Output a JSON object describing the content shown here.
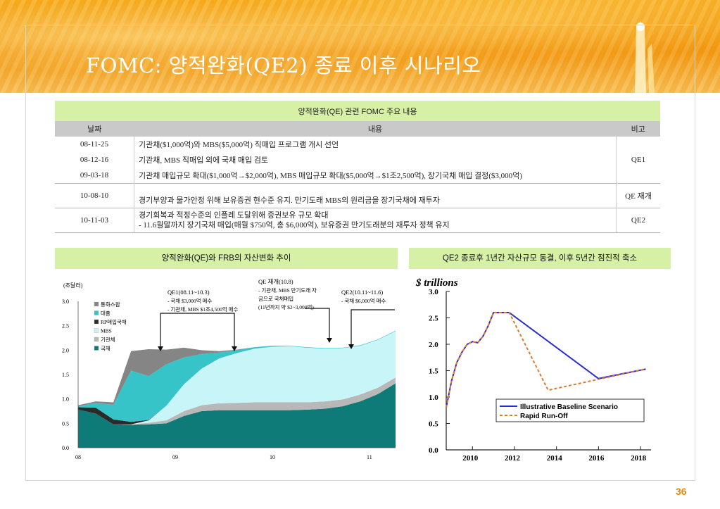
{
  "title": "FOMC: 양적완화(QE2) 종료 이후 시나리오",
  "table": {
    "caption": "양적완화(QE) 관련 FOMC 주요 내용",
    "headers": [
      "날짜",
      "내용",
      "비고"
    ],
    "rows": [
      {
        "date": "08-11-25",
        "content": "기관채($1,000억)와 MBS($5,000억) 직매입 프로그램 개시 선언"
      },
      {
        "date": "08-12-16",
        "content": "기관채, MBS 직매입 외에 국채 매입 검토"
      },
      {
        "date": "09-03-18",
        "content": "기관채 매입규모 확대($1,000억→$2,000억), MBS 매입규모 확대($5,000억→$1조2,500억), 장기국채 매입 결정($3,000억)"
      },
      {
        "date": "10-08-10",
        "content": "경기부양과 물가안정 위해 보유증권 현수준 유지.  만기도래 MBS의 원리금을 장기국채에 재투자",
        "note": "QE 재개"
      },
      {
        "date": "10-11-03",
        "content_1": "경기회복과 적정수준의 인플레 도달위해 증권보유 규모 확대",
        "content_2": "- 11.6월말까지 장기국채 매입(매월 $750억, 총 $6,000억),  보유증권 만기도래분의 재투자 정책 유지",
        "note": "QE2"
      }
    ],
    "group_note": "QE1"
  },
  "left_chart": {
    "caption": "양적완화(QE)와 FRB의 자산변화 추이",
    "unit": "(조달러)",
    "y_ticks": [
      "3.0",
      "2.5",
      "2.0",
      "1.5",
      "1.0",
      "0.5",
      "0.0"
    ],
    "x_ticks": [
      "08",
      "09",
      "10",
      "11"
    ],
    "legend": [
      "통화스왑",
      "대출",
      "RP매입국채",
      "MBS",
      "기관채",
      "국채"
    ],
    "ann_qe1_title": "QE1(08.11~10.3)",
    "ann_qe1_l1": "- 국채 $3,000억 매수",
    "ann_qe1_l2": "- 기관채, MBS $1조4,500억 매수",
    "ann_qe_title": "QE 재개(10.8)",
    "ann_qe_l1": "- 기관채, MBS 만기도래 자",
    "ann_qe_l2": "금으로 국채매입",
    "ann_qe_l3": "(11년까지 약 $2~3,000억)",
    "ann_qe2_title": "QE2(10.11~11.6)",
    "ann_qe2_l1": "- 국채 $6,000억 매수"
  },
  "right_chart": {
    "caption": "QE2 종료후 1년간 자산규모 동결, 이후 5년간 점진적 축소",
    "unit_label": "$ trillions",
    "y_ticks": [
      "3.0",
      "2.5",
      "2.0",
      "1.5",
      "1.0",
      "0.5",
      "0.0"
    ],
    "x_ticks": [
      "2010",
      "2012",
      "2014",
      "2016",
      "2018"
    ],
    "legend": [
      "Illustrative Baseline Scenario",
      "Rapid Run-Off"
    ],
    "colors": {
      "baseline": "#2b2bd6",
      "runoff": "#e07a2a"
    }
  },
  "chart_data": [
    {
      "type": "area",
      "title": "양적완화(QE)와 FRB의 자산변화 추이",
      "ylabel": "(조달러)",
      "ylim": [
        0,
        3.0
      ],
      "x": [
        "08.01",
        "08.05",
        "08.09",
        "08.11",
        "09.01",
        "09.03",
        "09.05",
        "09.07",
        "09.09",
        "09.11",
        "10.01",
        "10.03",
        "10.05",
        "10.07",
        "10.09",
        "10.11",
        "11.01",
        "11.03",
        "11.05"
      ],
      "series": [
        {
          "name": "국채",
          "values": [
            0.78,
            0.7,
            0.48,
            0.47,
            0.48,
            0.5,
            0.65,
            0.75,
            0.77,
            0.77,
            0.77,
            0.77,
            0.77,
            0.78,
            0.8,
            0.85,
            0.95,
            1.1,
            1.32
          ]
        },
        {
          "name": "기관채",
          "values": [
            0,
            0,
            0,
            0.01,
            0.03,
            0.06,
            0.1,
            0.12,
            0.14,
            0.15,
            0.16,
            0.16,
            0.16,
            0.15,
            0.15,
            0.14,
            0.14,
            0.13,
            0.12
          ]
        },
        {
          "name": "MBS",
          "values": [
            0,
            0,
            0,
            0,
            0.05,
            0.3,
            0.55,
            0.75,
            0.92,
            1.02,
            1.1,
            1.14,
            1.15,
            1.12,
            1.08,
            1.05,
            1.0,
            0.98,
            0.95
          ]
        },
        {
          "name": "RP매입국채",
          "values": [
            0.05,
            0.12,
            0.1,
            0.05,
            0.01,
            0,
            0,
            0,
            0,
            0,
            0,
            0,
            0,
            0,
            0,
            0,
            0,
            0,
            0
          ]
        },
        {
          "name": "대출",
          "values": [
            0.02,
            0.1,
            0.3,
            1.05,
            0.9,
            0.85,
            0.55,
            0.3,
            0.12,
            0.06,
            0.03,
            0.02,
            0.01,
            0.01,
            0.01,
            0.01,
            0.01,
            0.01,
            0.01
          ]
        },
        {
          "name": "통화스왑",
          "values": [
            0.02,
            0.03,
            0.05,
            0.4,
            0.55,
            0.3,
            0.2,
            0.08,
            0.03,
            0.01,
            0,
            0,
            0,
            0,
            0,
            0,
            0,
            0,
            0
          ]
        }
      ]
    },
    {
      "type": "line",
      "title": "",
      "ylabel": "$ trillions",
      "ylim": [
        0,
        3.0
      ],
      "xlim": [
        2008.75,
        2018.5
      ],
      "series": [
        {
          "name": "Illustrative Baseline Scenario",
          "x": [
            2008.75,
            2009.0,
            2009.25,
            2009.5,
            2009.75,
            2010.0,
            2010.25,
            2010.5,
            2010.75,
            2011.0,
            2011.5,
            2011.75,
            2016.0,
            2018.25
          ],
          "y": [
            0.8,
            1.3,
            1.65,
            1.85,
            2.0,
            2.05,
            2.03,
            2.15,
            2.35,
            2.6,
            2.6,
            2.6,
            1.35,
            1.53
          ]
        },
        {
          "name": "Rapid Run-Off",
          "x": [
            2008.75,
            2009.0,
            2009.25,
            2009.5,
            2009.75,
            2010.0,
            2010.25,
            2010.5,
            2010.75,
            2011.0,
            2011.5,
            2011.75,
            2013.6,
            2018.25
          ],
          "y": [
            0.8,
            1.3,
            1.65,
            1.85,
            2.0,
            2.05,
            2.03,
            2.15,
            2.35,
            2.6,
            2.6,
            2.6,
            1.13,
            1.53
          ]
        }
      ]
    }
  ],
  "page_number": "36"
}
